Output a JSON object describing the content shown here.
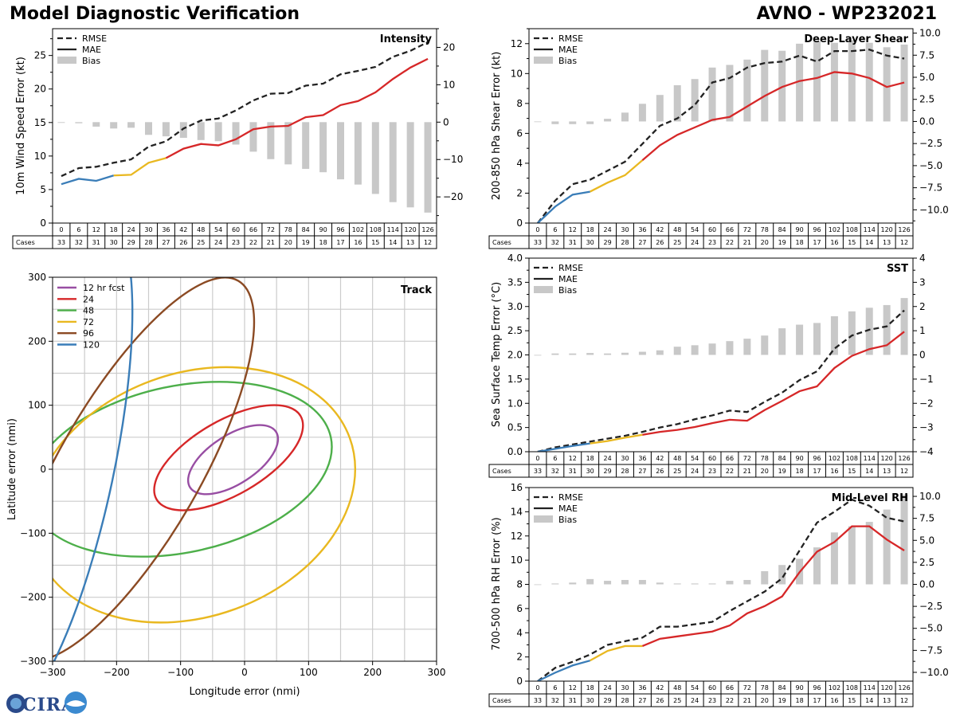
{
  "header": {
    "title": "Model Diagnostic Verification",
    "subtitle": "AVNO - WP232021"
  },
  "logo": {
    "text": "CIRA"
  },
  "colors": {
    "early": "#3a7db8",
    "mid": "#e9b820",
    "late": "#d62728",
    "rmse": "#222222",
    "bias": "#c8c8c8"
  },
  "legend_labels": {
    "rmse": "RMSE",
    "mae": "MAE",
    "bias": "Bias"
  },
  "cases_label": "Cases",
  "chart_data": [
    {
      "id": "intensity",
      "type": "line",
      "title": "Intensity",
      "ylabel": "10m Wind Speed Error (kt)",
      "ylim": [
        0,
        29
      ],
      "yticks": [
        0,
        5,
        10,
        15,
        20,
        25
      ],
      "y2lim": [
        -27,
        25
      ],
      "y2ticks": [
        -20,
        -10,
        0,
        10,
        20
      ],
      "hours": [
        0,
        6,
        12,
        18,
        24,
        30,
        36,
        42,
        48,
        54,
        60,
        66,
        72,
        78,
        84,
        90,
        96,
        102,
        108,
        114,
        120,
        126
      ],
      "cases": [
        33,
        32,
        31,
        30,
        29,
        28,
        27,
        26,
        25,
        24,
        23,
        22,
        21,
        20,
        19,
        18,
        17,
        16,
        15,
        14,
        13,
        12
      ],
      "series": [
        {
          "name": "RMSE",
          "values": [
            7.0,
            8.2,
            8.4,
            9.0,
            9.5,
            11.4,
            12.2,
            14.1,
            15.3,
            15.6,
            16.8,
            18.3,
            19.3,
            19.4,
            20.5,
            20.8,
            22.2,
            22.7,
            23.3,
            24.8,
            25.7,
            27.0
          ]
        },
        {
          "name": "MAE",
          "values": [
            5.8,
            6.6,
            6.3,
            7.1,
            7.2,
            9.0,
            9.7,
            11.1,
            11.8,
            11.6,
            12.5,
            14.0,
            14.4,
            14.5,
            15.8,
            16.1,
            17.6,
            18.2,
            19.5,
            21.5,
            23.2,
            24.5
          ]
        },
        {
          "name": "Bias",
          "values": [
            -0.2,
            -0.3,
            -1.2,
            -1.7,
            -1.5,
            -3.4,
            -3.8,
            -4.2,
            -4.8,
            -5.1,
            -6.0,
            -7.9,
            -9.9,
            -11.3,
            -12.5,
            -13.4,
            -15.3,
            -16.7,
            -19.2,
            -21.4,
            -22.8,
            -24.2
          ]
        }
      ]
    },
    {
      "id": "shear",
      "type": "line",
      "title": "Deep-Layer Shear",
      "ylabel": "200-850 hPa Shear Error (kt)",
      "ylim": [
        0,
        13
      ],
      "yticks": [
        0,
        2,
        4,
        6,
        8,
        10,
        12
      ],
      "y2lim": [
        -11.5,
        10.5
      ],
      "y2ticks": [
        -10.0,
        -7.5,
        -5.0,
        -2.5,
        0.0,
        2.5,
        5.0,
        7.5,
        10.0
      ],
      "hours": [
        0,
        6,
        12,
        18,
        24,
        30,
        36,
        42,
        48,
        54,
        60,
        66,
        72,
        78,
        84,
        90,
        96,
        102,
        108,
        114,
        120,
        126
      ],
      "cases": [
        33,
        32,
        31,
        30,
        29,
        28,
        27,
        26,
        25,
        24,
        23,
        22,
        21,
        20,
        19,
        18,
        17,
        16,
        15,
        14,
        13,
        12
      ],
      "series": [
        {
          "name": "RMSE",
          "values": [
            0.0,
            1.5,
            2.6,
            2.9,
            3.5,
            4.1,
            5.3,
            6.5,
            7.0,
            7.9,
            9.4,
            9.7,
            10.4,
            10.7,
            10.8,
            11.2,
            10.8,
            11.5,
            11.5,
            11.6,
            11.2,
            11.0
          ]
        },
        {
          "name": "MAE",
          "values": [
            0.0,
            1.1,
            1.9,
            2.1,
            2.7,
            3.2,
            4.2,
            5.2,
            5.9,
            6.4,
            6.9,
            7.1,
            7.8,
            8.5,
            9.1,
            9.5,
            9.7,
            10.1,
            10.0,
            9.7,
            9.1,
            9.4
          ]
        },
        {
          "name": "Bias",
          "values": [
            0.0,
            -0.3,
            -0.3,
            -0.3,
            0.3,
            1.0,
            2.0,
            3.0,
            4.1,
            4.8,
            6.1,
            6.4,
            7.0,
            8.1,
            8.0,
            8.8,
            9.1,
            8.9,
            9.2,
            8.9,
            8.4,
            8.7
          ]
        }
      ]
    },
    {
      "id": "sst",
      "type": "line",
      "title": "SST",
      "ylabel": "Sea Surface Temp Error (°C)",
      "ylim": [
        0,
        4
      ],
      "yticks": [
        0.0,
        0.5,
        1.0,
        1.5,
        2.0,
        2.5,
        3.0,
        3.5,
        4.0
      ],
      "y2lim": [
        -4,
        4
      ],
      "y2ticks": [
        -4,
        -3,
        -2,
        -1,
        0,
        1,
        2,
        3,
        4
      ],
      "hours": [
        0,
        6,
        12,
        18,
        24,
        30,
        36,
        42,
        48,
        54,
        60,
        66,
        72,
        78,
        84,
        90,
        96,
        102,
        108,
        114,
        120,
        126
      ],
      "cases": [
        33,
        32,
        31,
        30,
        29,
        28,
        27,
        26,
        25,
        24,
        23,
        22,
        21,
        20,
        19,
        18,
        17,
        16,
        15,
        14,
        13,
        12
      ],
      "series": [
        {
          "name": "RMSE",
          "values": [
            0.0,
            0.09,
            0.15,
            0.21,
            0.27,
            0.33,
            0.41,
            0.5,
            0.57,
            0.67,
            0.75,
            0.85,
            0.82,
            1.03,
            1.22,
            1.48,
            1.66,
            2.13,
            2.4,
            2.52,
            2.59,
            2.92
          ]
        },
        {
          "name": "MAE",
          "values": [
            0.0,
            0.06,
            0.12,
            0.17,
            0.22,
            0.29,
            0.35,
            0.41,
            0.45,
            0.51,
            0.59,
            0.66,
            0.64,
            0.86,
            1.05,
            1.25,
            1.35,
            1.73,
            1.98,
            2.12,
            2.2,
            2.48
          ]
        },
        {
          "name": "Bias",
          "values": [
            0.0,
            0.06,
            0.06,
            0.08,
            0.06,
            0.09,
            0.13,
            0.19,
            0.34,
            0.4,
            0.47,
            0.57,
            0.67,
            0.8,
            1.1,
            1.25,
            1.32,
            1.6,
            1.8,
            1.95,
            2.06,
            2.35
          ]
        }
      ]
    },
    {
      "id": "rh",
      "type": "line",
      "title": "Mid-Level RH",
      "ylabel": "700-500 hPa RH Error (%)",
      "ylim": [
        0,
        16
      ],
      "yticks": [
        0,
        2,
        4,
        6,
        8,
        10,
        12,
        14,
        16
      ],
      "y2lim": [
        -11,
        11
      ],
      "y2ticks": [
        -10.0,
        -7.5,
        -5.0,
        -2.5,
        0.0,
        2.5,
        5.0,
        7.5,
        10.0
      ],
      "hours": [
        0,
        6,
        12,
        18,
        24,
        30,
        36,
        42,
        48,
        54,
        60,
        66,
        72,
        78,
        84,
        90,
        96,
        102,
        108,
        114,
        120,
        126
      ],
      "cases": [
        33,
        32,
        31,
        30,
        29,
        28,
        27,
        26,
        25,
        24,
        23,
        22,
        21,
        20,
        19,
        18,
        17,
        16,
        15,
        14,
        13,
        12
      ],
      "series": [
        {
          "name": "RMSE",
          "values": [
            0.0,
            1.1,
            1.6,
            2.2,
            3.0,
            3.3,
            3.6,
            4.5,
            4.5,
            4.7,
            4.9,
            5.8,
            6.6,
            7.4,
            8.5,
            10.8,
            13.1,
            14.0,
            15.0,
            14.5,
            13.5,
            13.2
          ]
        },
        {
          "name": "MAE",
          "values": [
            0.0,
            0.7,
            1.3,
            1.7,
            2.5,
            2.9,
            2.9,
            3.5,
            3.7,
            3.9,
            4.1,
            4.6,
            5.6,
            6.2,
            7.0,
            9.0,
            10.7,
            11.5,
            12.8,
            12.8,
            11.7,
            10.8
          ]
        },
        {
          "name": "Bias",
          "values": [
            0.0,
            0.1,
            0.2,
            0.6,
            0.4,
            0.5,
            0.5,
            0.2,
            0.1,
            0.1,
            0.1,
            0.4,
            0.5,
            1.5,
            2.2,
            2.9,
            4.2,
            5.9,
            6.6,
            7.1,
            8.5,
            10.2
          ]
        }
      ]
    },
    {
      "id": "track",
      "type": "scatter",
      "title": "Track",
      "xlabel": "Longitude error (nmi)",
      "ylabel": "Latitude error (nmi)",
      "xlim": [
        -300,
        300
      ],
      "ylim": [
        -300,
        300
      ],
      "xticks": [
        -300,
        -200,
        -100,
        0,
        100,
        200,
        300
      ],
      "yticks": [
        -300,
        -200,
        -100,
        0,
        100,
        200,
        300
      ],
      "ellipses": [
        {
          "name": "12 hr fcst",
          "color": "#984ea3",
          "cx": -18,
          "cy": 15,
          "a": 80,
          "b": 38,
          "angle": 33
        },
        {
          "name": "24",
          "color": "#d62728",
          "cx": -25,
          "cy": 18,
          "a": 130,
          "b": 58,
          "angle": 30
        },
        {
          "name": "48",
          "color": "#4daf4a",
          "cx": -100,
          "cy": 0,
          "a": 240,
          "b": 130,
          "angle": 12
        },
        {
          "name": "72",
          "color": "#e9b820",
          "cx": -80,
          "cy": -40,
          "a": 260,
          "b": 190,
          "angle": 20
        },
        {
          "name": "96",
          "color": "#8b4a23",
          "cx": -180,
          "cy": 0,
          "a": 340,
          "b": 110,
          "angle": 60
        },
        {
          "name": "120",
          "color": "#3a7db8",
          "cx": -300,
          "cy": 0,
          "a": 400,
          "b": 95,
          "angle": 78
        }
      ]
    }
  ]
}
